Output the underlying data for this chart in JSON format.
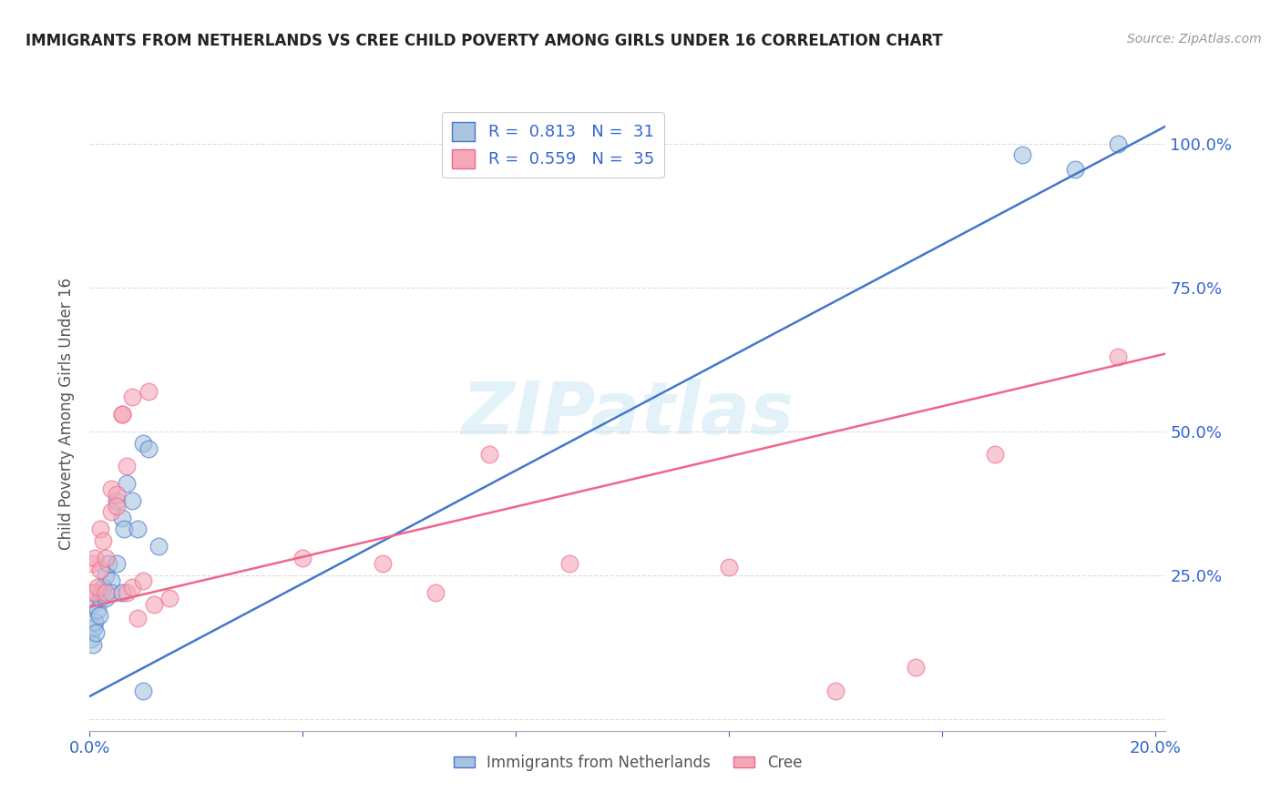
{
  "title": "IMMIGRANTS FROM NETHERLANDS VS CREE CHILD POVERTY AMONG GIRLS UNDER 16 CORRELATION CHART",
  "source": "Source: ZipAtlas.com",
  "ylabel": "Child Poverty Among Girls Under 16",
  "legend_blue_R": "0.813",
  "legend_blue_N": "31",
  "legend_pink_R": "0.559",
  "legend_pink_N": "35",
  "legend_blue_label": "Immigrants from Netherlands",
  "legend_pink_label": "Cree",
  "blue_color": "#A8C4E0",
  "pink_color": "#F4A8B8",
  "line_blue_color": "#4477CC",
  "line_pink_color": "#EE6688",
  "watermark_color": "#BBDDEE",
  "blue_scatter_x": [
    0.0003,
    0.0006,
    0.0008,
    0.001,
    0.0012,
    0.0005,
    0.0015,
    0.002,
    0.0018,
    0.0022,
    0.003,
    0.0025,
    0.003,
    0.0035,
    0.004,
    0.004,
    0.005,
    0.005,
    0.006,
    0.006,
    0.0065,
    0.007,
    0.008,
    0.009,
    0.01,
    0.011,
    0.013,
    0.01,
    0.175,
    0.185,
    0.193
  ],
  "blue_scatter_y": [
    0.14,
    0.13,
    0.16,
    0.17,
    0.15,
    0.2,
    0.19,
    0.21,
    0.18,
    0.22,
    0.21,
    0.23,
    0.25,
    0.27,
    0.24,
    0.22,
    0.27,
    0.38,
    0.22,
    0.35,
    0.33,
    0.41,
    0.38,
    0.33,
    0.48,
    0.47,
    0.3,
    0.05,
    0.98,
    0.955,
    1.0
  ],
  "pink_scatter_x": [
    0.0003,
    0.0005,
    0.001,
    0.001,
    0.0015,
    0.002,
    0.002,
    0.0025,
    0.003,
    0.003,
    0.004,
    0.004,
    0.005,
    0.005,
    0.006,
    0.006,
    0.007,
    0.007,
    0.008,
    0.008,
    0.009,
    0.01,
    0.011,
    0.012,
    0.015,
    0.04,
    0.055,
    0.065,
    0.075,
    0.09,
    0.12,
    0.14,
    0.155,
    0.17,
    0.193
  ],
  "pink_scatter_y": [
    0.22,
    0.27,
    0.22,
    0.28,
    0.23,
    0.26,
    0.33,
    0.31,
    0.28,
    0.22,
    0.36,
    0.4,
    0.39,
    0.37,
    0.53,
    0.53,
    0.44,
    0.22,
    0.56,
    0.23,
    0.175,
    0.24,
    0.57,
    0.2,
    0.21,
    0.28,
    0.27,
    0.22,
    0.46,
    0.27,
    0.265,
    0.05,
    0.09,
    0.46,
    0.63
  ],
  "xmin": 0.0,
  "xmax": 0.202,
  "ymin": -0.02,
  "ymax": 1.08,
  "blue_line_x0": 0.0,
  "blue_line_x1": 0.202,
  "blue_line_y0": 0.04,
  "blue_line_y1": 1.03,
  "pink_line_x0": 0.0,
  "pink_line_x1": 0.202,
  "pink_line_y0": 0.195,
  "pink_line_y1": 0.635,
  "xtick_positions": [
    0.0,
    0.04,
    0.08,
    0.12,
    0.16,
    0.2
  ],
  "xtick_labels": [
    "0.0%",
    "",
    "",
    "",
    "",
    "20.0%"
  ],
  "ytick_positions": [
    0.0,
    0.25,
    0.5,
    0.75,
    1.0
  ],
  "ytick_labels_right": [
    "",
    "25.0%",
    "50.0%",
    "75.0%",
    "100.0%"
  ]
}
